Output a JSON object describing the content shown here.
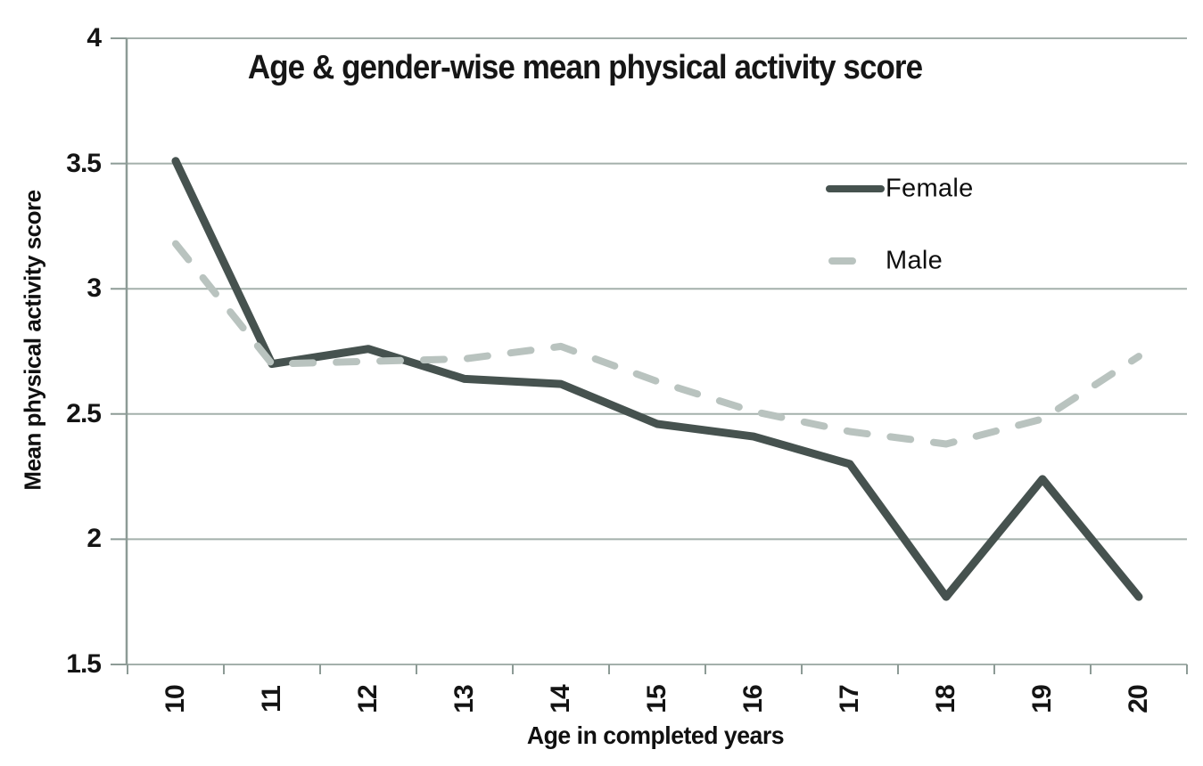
{
  "chart_data": {
    "type": "line",
    "title": "Age & gender-wise mean physical activity score",
    "xlabel": "Age in completed years",
    "ylabel": "Mean physical activity score",
    "categories": [
      "10",
      "11",
      "12",
      "13",
      "14",
      "15",
      "16",
      "17",
      "18",
      "19",
      "20"
    ],
    "series": [
      {
        "name": "Female",
        "line_style": "solid",
        "color": "#46524f",
        "values": [
          3.51,
          2.7,
          2.76,
          2.64,
          2.62,
          2.46,
          2.41,
          2.3,
          1.77,
          2.24,
          1.77
        ]
      },
      {
        "name": "Male",
        "line_style": "dashed",
        "color": "#b9c3bf",
        "values": [
          3.18,
          2.7,
          2.71,
          2.72,
          2.77,
          2.63,
          2.51,
          2.43,
          2.38,
          2.48,
          2.73
        ]
      }
    ],
    "ylim": [
      1.5,
      4
    ],
    "yticks": [
      "4",
      "3.5",
      "3",
      "2.5",
      "2",
      "1.5"
    ],
    "grid": "horizontal",
    "legend_position": "inside-top-right",
    "colors": {
      "grid": "#a4b0ab",
      "axis": "#8d9b96",
      "text": "#161616"
    }
  }
}
